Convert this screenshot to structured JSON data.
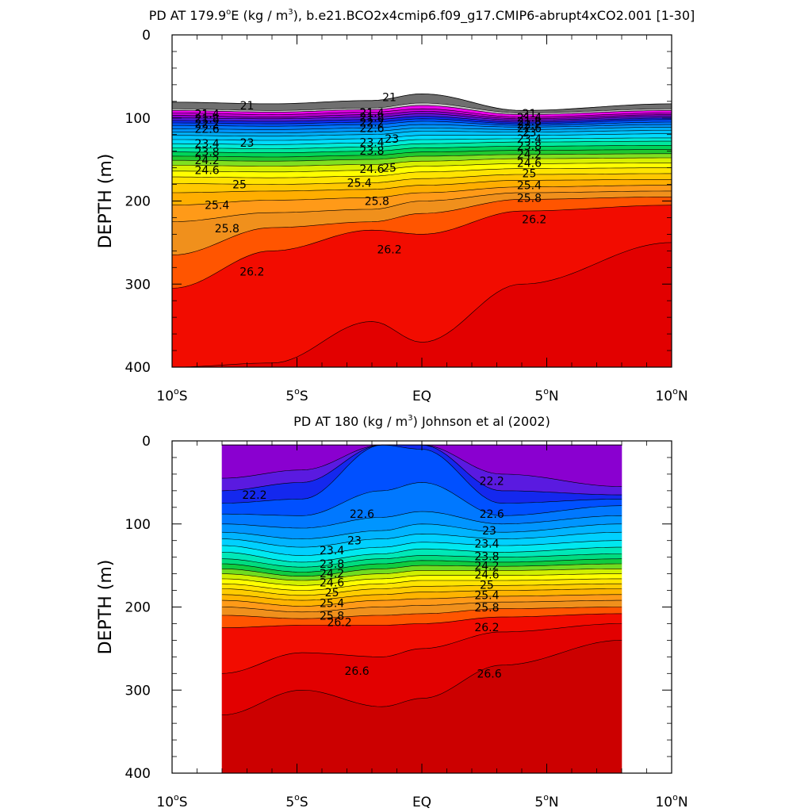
{
  "chart_data": [
    {
      "type": "contour",
      "title": "PD AT 179.9°E (kg / m³), b.e21.BCO2x4cmip6.f09_g17.CMIP6-abrupt4xCO2.001 [1-30]",
      "title_parts": [
        "PD AT 179.9",
        "o",
        "E (kg / m",
        "3",
        "), b.e21.BCO2x4cmip6.f09_g17.CMIP6-abrupt4xCO2.001 [1-30]"
      ],
      "ylabel": "DEPTH (m)",
      "xlim": [
        -10,
        10
      ],
      "ylim": [
        400,
        0
      ],
      "y_ticks": [
        "0",
        "100",
        "200",
        "300",
        "400"
      ],
      "x_ticks": [
        {
          "value": -10,
          "main": "10",
          "sup": "o",
          "suffix": "S"
        },
        {
          "value": -5,
          "main": "5",
          "sup": "o",
          "suffix": "S"
        },
        {
          "value": 0,
          "main": "EQ",
          "sup": "",
          "suffix": ""
        },
        {
          "value": 5,
          "main": "5",
          "sup": "o",
          "suffix": "N"
        },
        {
          "value": 10,
          "main": "10",
          "sup": "o",
          "suffix": "N"
        }
      ],
      "data_extent": [
        -10,
        10
      ],
      "top_depth": [
        81,
        83,
        79,
        71,
        91,
        83
      ],
      "levels": [
        {
          "value": 21.0,
          "color": "#6f6f6f",
          "d": [
            89,
            91,
            88,
            82,
            94,
            89
          ]
        },
        {
          "value": 21.2,
          "color": "#c8c8c8",
          "d": [
            91,
            93,
            90,
            85,
            96,
            91
          ]
        },
        {
          "value": 21.4,
          "color": "#ee00ee",
          "d": [
            94,
            96,
            93,
            89,
            99,
            94
          ]
        },
        {
          "value": 21.6,
          "color": "#c400d8",
          "d": [
            97,
            99,
            96,
            92,
            101,
            96
          ]
        },
        {
          "value": 21.8,
          "color": "#8a00d0",
          "d": [
            100,
            101,
            99,
            95,
            103,
            98
          ]
        },
        {
          "value": 22.0,
          "color": "#5a1ae0",
          "d": [
            103,
            104,
            102,
            98,
            105,
            100
          ]
        },
        {
          "value": 22.2,
          "color": "#1428ee",
          "d": [
            106,
            107,
            105,
            101,
            107,
            102
          ]
        },
        {
          "value": 22.4,
          "color": "#0050ff",
          "d": [
            109,
            110,
            108,
            104,
            109,
            105
          ]
        },
        {
          "value": 22.6,
          "color": "#0078ff",
          "d": [
            113,
            114,
            112,
            108,
            111,
            108
          ]
        },
        {
          "value": 22.8,
          "color": "#0095ff",
          "d": [
            117,
            118,
            116,
            112,
            114,
            111
          ]
        },
        {
          "value": 23.0,
          "color": "#00aef8",
          "d": [
            121,
            122,
            120,
            116,
            117,
            115
          ]
        },
        {
          "value": 23.2,
          "color": "#00c4ff",
          "d": [
            126,
            127,
            125,
            121,
            121,
            119
          ]
        },
        {
          "value": 23.4,
          "color": "#00dcff",
          "d": [
            131,
            132,
            130,
            126,
            125,
            124
          ]
        },
        {
          "value": 23.6,
          "color": "#00ecd8",
          "d": [
            136,
            137,
            135,
            131,
            129,
            128
          ]
        },
        {
          "value": 23.8,
          "color": "#00e8a0",
          "d": [
            141,
            142,
            140,
            136,
            134,
            133
          ]
        },
        {
          "value": 24.0,
          "color": "#00d45a",
          "d": [
            146,
            147,
            145,
            141,
            139,
            138
          ]
        },
        {
          "value": 24.2,
          "color": "#20c830",
          "d": [
            151,
            152,
            150,
            146,
            144,
            143
          ]
        },
        {
          "value": 24.4,
          "color": "#80e020",
          "d": [
            157,
            158,
            156,
            152,
            149,
            148
          ]
        },
        {
          "value": 24.6,
          "color": "#d8f000",
          "d": [
            164,
            165,
            163,
            158,
            155,
            154
          ]
        },
        {
          "value": 24.8,
          "color": "#ffff00",
          "d": [
            171,
            172,
            170,
            165,
            161,
            160
          ]
        },
        {
          "value": 25.0,
          "color": "#ffe400",
          "d": [
            179,
            180,
            178,
            173,
            168,
            167
          ]
        },
        {
          "value": 25.2,
          "color": "#ffc800",
          "d": [
            190,
            188,
            186,
            181,
            175,
            174
          ]
        },
        {
          "value": 25.4,
          "color": "#ffae00",
          "d": [
            205,
            199,
            196,
            190,
            183,
            181
          ]
        },
        {
          "value": 25.6,
          "color": "#ff9a18",
          "d": [
            225,
            214,
            210,
            200,
            190,
            188
          ]
        },
        {
          "value": 25.8,
          "color": "#f0901c",
          "d": [
            265,
            232,
            225,
            215,
            198,
            195
          ]
        },
        {
          "value": 26.0,
          "color": "#ff5500",
          "d": [
            305,
            260,
            235,
            240,
            212,
            205
          ]
        },
        {
          "value": 26.2,
          "color": "#f20c00",
          "d": [
            400,
            395,
            345,
            370,
            300,
            250
          ]
        },
        {
          "value": 26.4,
          "color": "#e20000",
          "d": [
            400,
            400,
            400,
            400,
            400,
            400
          ]
        }
      ],
      "label_rows": [
        {
          "x": -8.6,
          "values": [
            "21.4",
            "21.8",
            "22.2",
            "22.6",
            "23.4",
            "23.8",
            "24.2",
            "24.6"
          ]
        },
        {
          "x": -2.0,
          "values": [
            "21.4",
            "21.8",
            "22.2",
            "22.6",
            "23.4",
            "23.8",
            "24.6"
          ]
        },
        {
          "x": 4.3,
          "values": [
            "21",
            "21.4",
            "21.8",
            "22.2",
            "22.6",
            "23",
            "23.4",
            "23.8",
            "24.2",
            "24.6",
            "25",
            "25.4",
            "25.8"
          ]
        }
      ],
      "labels": [
        {
          "x": -7.0,
          "y": 85,
          "text": "21"
        },
        {
          "x": -1.3,
          "y": 75,
          "text": "21"
        },
        {
          "x": -7.0,
          "y": 130,
          "text": "23"
        },
        {
          "x": -1.2,
          "y": 125,
          "text": "23"
        },
        {
          "x": -7.3,
          "y": 180,
          "text": "25"
        },
        {
          "x": -1.3,
          "y": 160,
          "text": "25"
        },
        {
          "x": -8.2,
          "y": 205,
          "text": "25.4"
        },
        {
          "x": -2.5,
          "y": 178,
          "text": "25.4"
        },
        {
          "x": -7.8,
          "y": 233,
          "text": "25.8"
        },
        {
          "x": -1.8,
          "y": 200,
          "text": "25.8"
        },
        {
          "x": -6.8,
          "y": 285,
          "text": "26.2"
        },
        {
          "x": -1.3,
          "y": 258,
          "text": "26.2"
        },
        {
          "x": 4.5,
          "y": 222,
          "text": "26.2"
        }
      ]
    },
    {
      "type": "contour",
      "title": "PD AT 180 (kg / m³) Johnson et al (2002)",
      "title_parts": [
        "PD AT 180 (kg / m",
        "3",
        ") Johnson et al (2002)"
      ],
      "ylabel": "DEPTH (m)",
      "xlim": [
        -10,
        10
      ],
      "ylim": [
        400,
        0
      ],
      "y_ticks": [
        "0",
        "100",
        "200",
        "300",
        "400"
      ],
      "x_ticks": [
        {
          "value": -10,
          "main": "10",
          "sup": "o",
          "suffix": "S"
        },
        {
          "value": -5,
          "main": "5",
          "sup": "o",
          "suffix": "S"
        },
        {
          "value": 0,
          "main": "EQ",
          "sup": "",
          "suffix": ""
        },
        {
          "value": 5,
          "main": "5",
          "sup": "o",
          "suffix": "N"
        },
        {
          "value": 10,
          "main": "10",
          "sup": "o",
          "suffix": "N"
        }
      ],
      "data_extent": [
        -8,
        8
      ],
      "top_depth": [
        5,
        5,
        5,
        5,
        5,
        5
      ],
      "levels": [
        {
          "value": 21.8,
          "color": "#c400d8",
          "d": [
            5,
            5,
            5,
            5,
            5,
            5
          ]
        },
        {
          "value": 22.0,
          "color": "#8a00d0",
          "d": [
            45,
            35,
            5,
            5,
            40,
            55
          ]
        },
        {
          "value": 22.2,
          "color": "#5a1ae0",
          "d": [
            60,
            50,
            5,
            5,
            60,
            65
          ]
        },
        {
          "value": 22.4,
          "color": "#1428ee",
          "d": [
            75,
            70,
            5,
            10,
            75,
            70
          ]
        },
        {
          "value": 22.6,
          "color": "#0050ff",
          "d": [
            88,
            90,
            60,
            50,
            90,
            78
          ]
        },
        {
          "value": 22.8,
          "color": "#0078ff",
          "d": [
            100,
            105,
            92,
            85,
            100,
            90
          ]
        },
        {
          "value": 23.0,
          "color": "#0095ff",
          "d": [
            110,
            118,
            108,
            100,
            110,
            100
          ]
        },
        {
          "value": 23.2,
          "color": "#00b4ff",
          "d": [
            118,
            128,
            118,
            112,
            118,
            110
          ]
        },
        {
          "value": 23.4,
          "color": "#00d0ff",
          "d": [
            126,
            138,
            128,
            122,
            126,
            120
          ]
        },
        {
          "value": 23.6,
          "color": "#00e8f0",
          "d": [
            134,
            146,
            136,
            130,
            134,
            128
          ]
        },
        {
          "value": 23.8,
          "color": "#00e8b8",
          "d": [
            142,
            152,
            142,
            138,
            140,
            136
          ]
        },
        {
          "value": 24.0,
          "color": "#00dc80",
          "d": [
            148,
            158,
            148,
            144,
            146,
            142
          ]
        },
        {
          "value": 24.2,
          "color": "#10cc40",
          "d": [
            154,
            163,
            154,
            150,
            151,
            148
          ]
        },
        {
          "value": 24.4,
          "color": "#70dc20",
          "d": [
            160,
            168,
            160,
            156,
            156,
            154
          ]
        },
        {
          "value": 24.6,
          "color": "#d0f000",
          "d": [
            166,
            174,
            166,
            162,
            162,
            160
          ]
        },
        {
          "value": 24.8,
          "color": "#ffff00",
          "d": [
            172,
            180,
            172,
            168,
            168,
            166
          ]
        },
        {
          "value": 25.0,
          "color": "#ffe400",
          "d": [
            178,
            186,
            178,
            175,
            174,
            172
          ]
        },
        {
          "value": 25.2,
          "color": "#ffcc00",
          "d": [
            185,
            192,
            185,
            182,
            180,
            178
          ]
        },
        {
          "value": 25.4,
          "color": "#ffb400",
          "d": [
            192,
            199,
            192,
            190,
            187,
            185
          ]
        },
        {
          "value": 25.6,
          "color": "#ff9a18",
          "d": [
            200,
            206,
            200,
            198,
            194,
            192
          ]
        },
        {
          "value": 25.8,
          "color": "#f0901c",
          "d": [
            210,
            214,
            210,
            208,
            202,
            200
          ]
        },
        {
          "value": 26.0,
          "color": "#ff5500",
          "d": [
            225,
            222,
            222,
            220,
            212,
            208
          ]
        },
        {
          "value": 26.2,
          "color": "#f20c00",
          "d": [
            280,
            255,
            260,
            250,
            230,
            220
          ]
        },
        {
          "value": 26.4,
          "color": "#e20000",
          "d": [
            330,
            300,
            320,
            310,
            270,
            240
          ]
        },
        {
          "value": 26.6,
          "color": "#cc0000",
          "d": [
            400,
            400,
            400,
            400,
            400,
            400
          ]
        }
      ],
      "label_rows": [
        {
          "x": -3.6,
          "values": [
            "23.4",
            "23.8",
            "24.2",
            "24.6",
            "25",
            "25.4",
            "25.8"
          ]
        },
        {
          "x": 2.6,
          "values": [
            "23.4",
            "23.8",
            "24.2",
            "24.6",
            "25",
            "25.4",
            "25.8",
            "26.2"
          ]
        }
      ],
      "labels": [
        {
          "x": -6.7,
          "y": 65,
          "text": "22.2"
        },
        {
          "x": 2.8,
          "y": 48,
          "text": "22.2"
        },
        {
          "x": -2.4,
          "y": 88,
          "text": "22.6"
        },
        {
          "x": 2.8,
          "y": 88,
          "text": "22.6"
        },
        {
          "x": -2.7,
          "y": 120,
          "text": "23"
        },
        {
          "x": 2.7,
          "y": 108,
          "text": "23"
        },
        {
          "x": -3.3,
          "y": 218,
          "text": "26.2"
        },
        {
          "x": -2.6,
          "y": 277,
          "text": "26.6"
        },
        {
          "x": 2.7,
          "y": 280,
          "text": "26.6"
        }
      ]
    }
  ]
}
